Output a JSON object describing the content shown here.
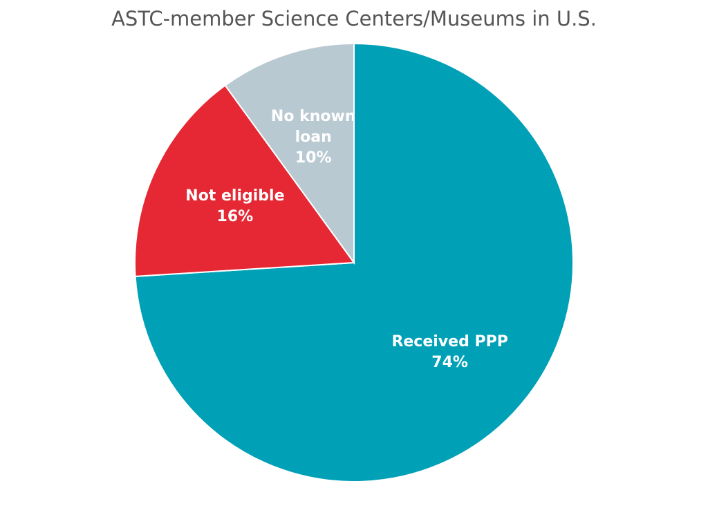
{
  "chart_data": {
    "type": "pie",
    "title": "ASTC-member Science Centers/Museums in U.S.",
    "categories": [
      "Received PPP",
      "Not eligible",
      "No known loan"
    ],
    "values": [
      74,
      16,
      10
    ],
    "value_labels": [
      "74%",
      "16%",
      "10%"
    ],
    "colors": [
      "#00a0b7",
      "#e52833",
      "#b9c9d2"
    ]
  }
}
